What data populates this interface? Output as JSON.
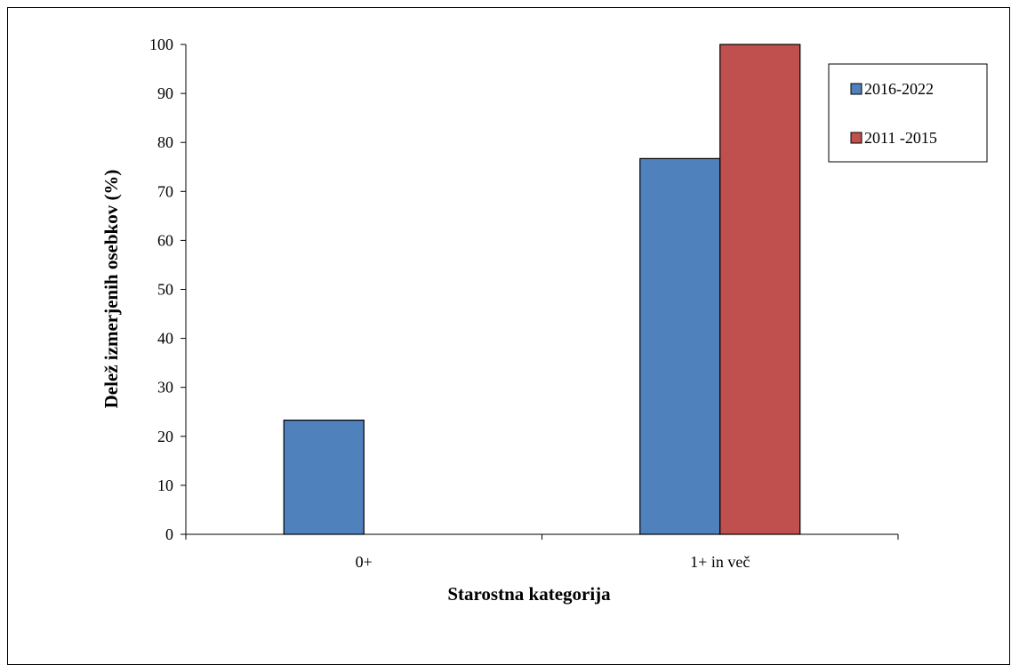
{
  "chart_data": {
    "type": "bar",
    "title": "",
    "xlabel": "Starostna kategorija",
    "ylabel": "Delež izmerjenih osebkov (%)",
    "ylim": [
      0,
      100
    ],
    "yticks": [
      0,
      10,
      20,
      30,
      40,
      50,
      60,
      70,
      80,
      90,
      100
    ],
    "categories": [
      "0+",
      "1+ in več"
    ],
    "series": [
      {
        "name": "2016-2022",
        "color": "#4F81BD",
        "values": [
          23.3,
          76.7
        ]
      },
      {
        "name": "2011 -2015",
        "color": "#C0504D",
        "values": [
          0,
          100
        ]
      }
    ],
    "legend_position": "top-right",
    "grid": false
  }
}
